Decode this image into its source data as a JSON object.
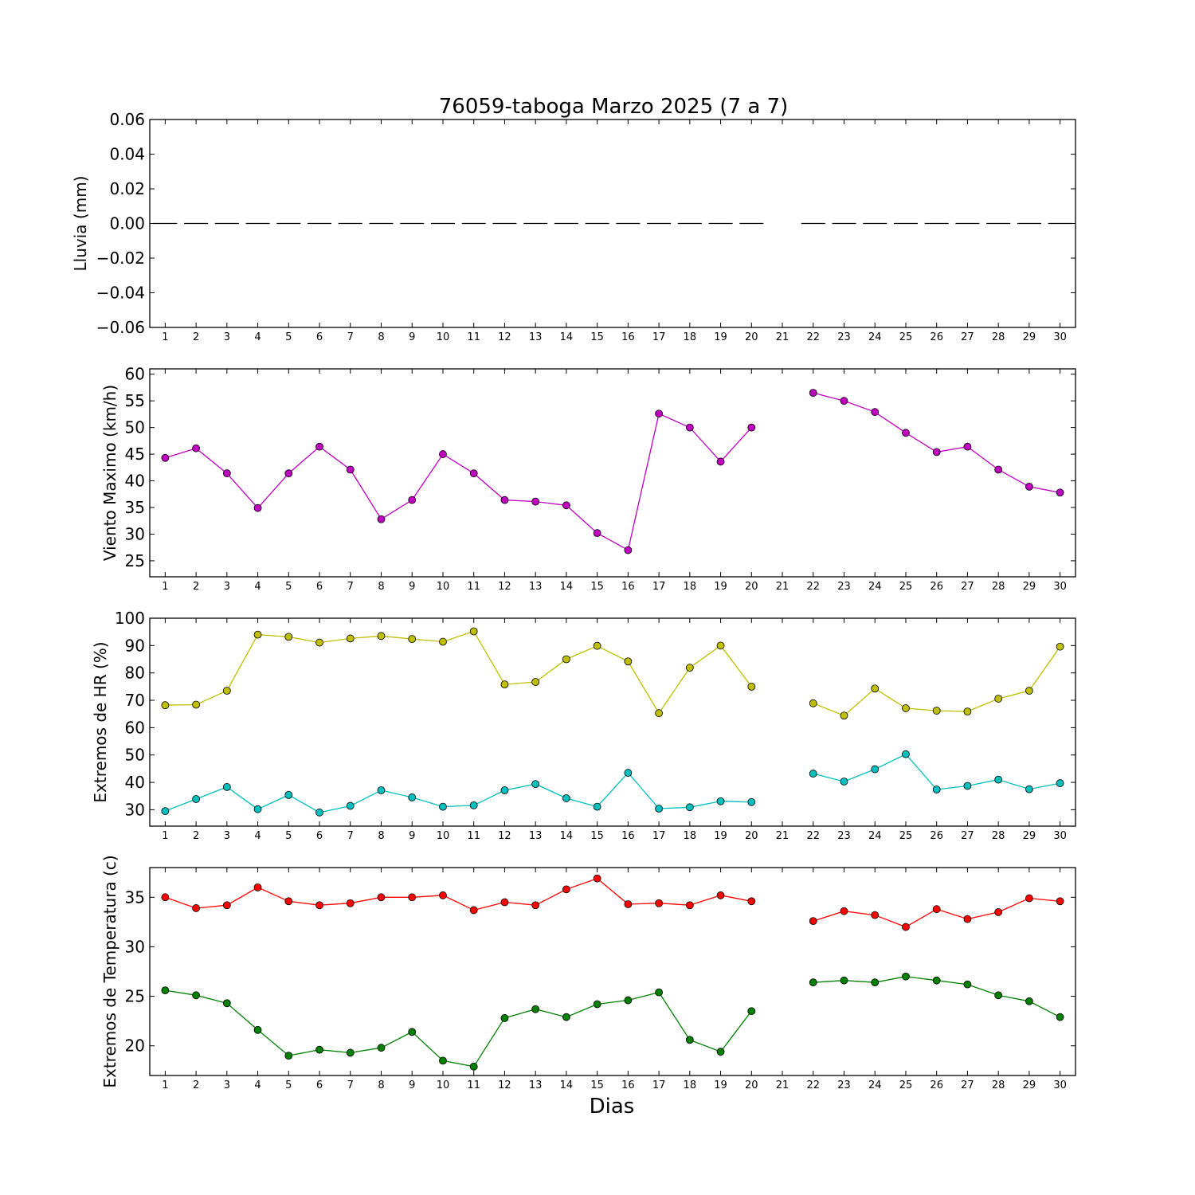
{
  "title": "76059-taboga Marzo 2025  (7 a 7)",
  "xlabel": "Dias",
  "chart_data": [
    {
      "type": "line",
      "ylabel": "Lluvia (mm)",
      "ylim": [
        -0.06,
        0.06
      ],
      "yticks": [
        -0.06,
        -0.04,
        -0.02,
        0.0,
        0.02,
        0.04,
        0.06
      ],
      "ytick_labels": [
        "−0.06",
        "−0.04",
        "−0.02",
        "0.00",
        "0.02",
        "0.04",
        "0.06"
      ],
      "x": [
        1,
        2,
        3,
        4,
        5,
        6,
        7,
        8,
        9,
        10,
        11,
        12,
        13,
        14,
        15,
        16,
        17,
        18,
        19,
        20,
        21,
        22,
        23,
        24,
        25,
        26,
        27,
        28,
        29,
        30
      ],
      "series": [
        {
          "style": "bars-as-dashes",
          "color": "#000000",
          "values": [
            0,
            0,
            0,
            0,
            0,
            0,
            0,
            0,
            0,
            0,
            0,
            0,
            0,
            0,
            0,
            0,
            0,
            0,
            0,
            0,
            null,
            0,
            0,
            0,
            0,
            0,
            0,
            0,
            0,
            0
          ]
        }
      ]
    },
    {
      "type": "line",
      "ylabel": "Viento Maximo (km/h)",
      "ylim": [
        22,
        61
      ],
      "yticks": [
        25,
        30,
        35,
        40,
        45,
        50,
        55,
        60
      ],
      "ytick_labels": [
        "25",
        "30",
        "35",
        "40",
        "45",
        "50",
        "55",
        "60"
      ],
      "x": [
        1,
        2,
        3,
        4,
        5,
        6,
        7,
        8,
        9,
        10,
        11,
        12,
        13,
        14,
        15,
        16,
        17,
        18,
        19,
        20,
        21,
        22,
        23,
        24,
        25,
        26,
        27,
        28,
        29,
        30
      ],
      "series": [
        {
          "color": "#bf00bf",
          "values": [
            44.3,
            46.1,
            41.4,
            34.9,
            41.4,
            46.4,
            42.1,
            32.8,
            36.4,
            45.0,
            41.4,
            36.4,
            36.1,
            35.4,
            30.2,
            27.0,
            52.6,
            50.0,
            43.6,
            50.0,
            null,
            56.5,
            55.0,
            52.9,
            49.0,
            45.4,
            46.4,
            42.1,
            38.9,
            37.8
          ]
        }
      ]
    },
    {
      "type": "line",
      "ylabel": "Extremos de HR (%)",
      "ylim": [
        24,
        100
      ],
      "yticks": [
        30,
        40,
        50,
        60,
        70,
        80,
        90,
        100
      ],
      "ytick_labels": [
        "30",
        "40",
        "50",
        "60",
        "70",
        "80",
        "90",
        "100"
      ],
      "x": [
        1,
        2,
        3,
        4,
        5,
        6,
        7,
        8,
        9,
        10,
        11,
        12,
        13,
        14,
        15,
        16,
        17,
        18,
        19,
        20,
        21,
        22,
        23,
        24,
        25,
        26,
        27,
        28,
        29,
        30
      ],
      "series": [
        {
          "color": "#bfbf00",
          "values": [
            68.2,
            68.4,
            73.5,
            94.0,
            93.2,
            91.1,
            92.6,
            93.5,
            92.4,
            91.4,
            95.2,
            75.8,
            76.7,
            85.0,
            89.9,
            84.2,
            65.3,
            81.9,
            90.0,
            75.0,
            null,
            68.9,
            64.4,
            74.3,
            67.1,
            66.2,
            65.9,
            70.6,
            73.5,
            89.6
          ]
        },
        {
          "color": "#00bfbf",
          "values": [
            29.5,
            33.9,
            38.3,
            30.2,
            35.4,
            29.0,
            31.4,
            37.1,
            34.5,
            31.1,
            31.6,
            37.1,
            39.4,
            34.2,
            31.1,
            43.5,
            30.4,
            30.9,
            33.1,
            32.8,
            null,
            43.2,
            40.3,
            44.8,
            50.3,
            37.4,
            38.7,
            41.0,
            37.5,
            39.7
          ]
        }
      ]
    },
    {
      "type": "line",
      "ylabel": "Extremos de Temperatura (c)",
      "ylim": [
        17.0,
        38.0
      ],
      "yticks": [
        20,
        25,
        30,
        35
      ],
      "ytick_labels": [
        "20",
        "25",
        "30",
        "35"
      ],
      "x": [
        1,
        2,
        3,
        4,
        5,
        6,
        7,
        8,
        9,
        10,
        11,
        12,
        13,
        14,
        15,
        16,
        17,
        18,
        19,
        20,
        21,
        22,
        23,
        24,
        25,
        26,
        27,
        28,
        29,
        30
      ],
      "series": [
        {
          "color": "#ff0000",
          "values": [
            35.0,
            33.9,
            34.2,
            36.0,
            34.6,
            34.2,
            34.4,
            35.0,
            35.0,
            35.2,
            33.7,
            34.5,
            34.2,
            35.8,
            36.9,
            34.3,
            34.4,
            34.2,
            35.2,
            34.6,
            null,
            32.6,
            33.6,
            33.2,
            32.0,
            33.8,
            32.8,
            33.5,
            34.9,
            34.6
          ]
        },
        {
          "color": "#008000",
          "values": [
            25.6,
            25.1,
            24.3,
            21.6,
            19.0,
            19.6,
            19.3,
            19.8,
            21.4,
            18.5,
            17.9,
            22.8,
            23.7,
            22.9,
            24.2,
            24.6,
            25.4,
            20.6,
            19.4,
            23.5,
            null,
            26.4,
            26.6,
            26.4,
            27.0,
            26.6,
            26.2,
            25.1,
            24.5,
            22.9
          ]
        }
      ]
    }
  ]
}
